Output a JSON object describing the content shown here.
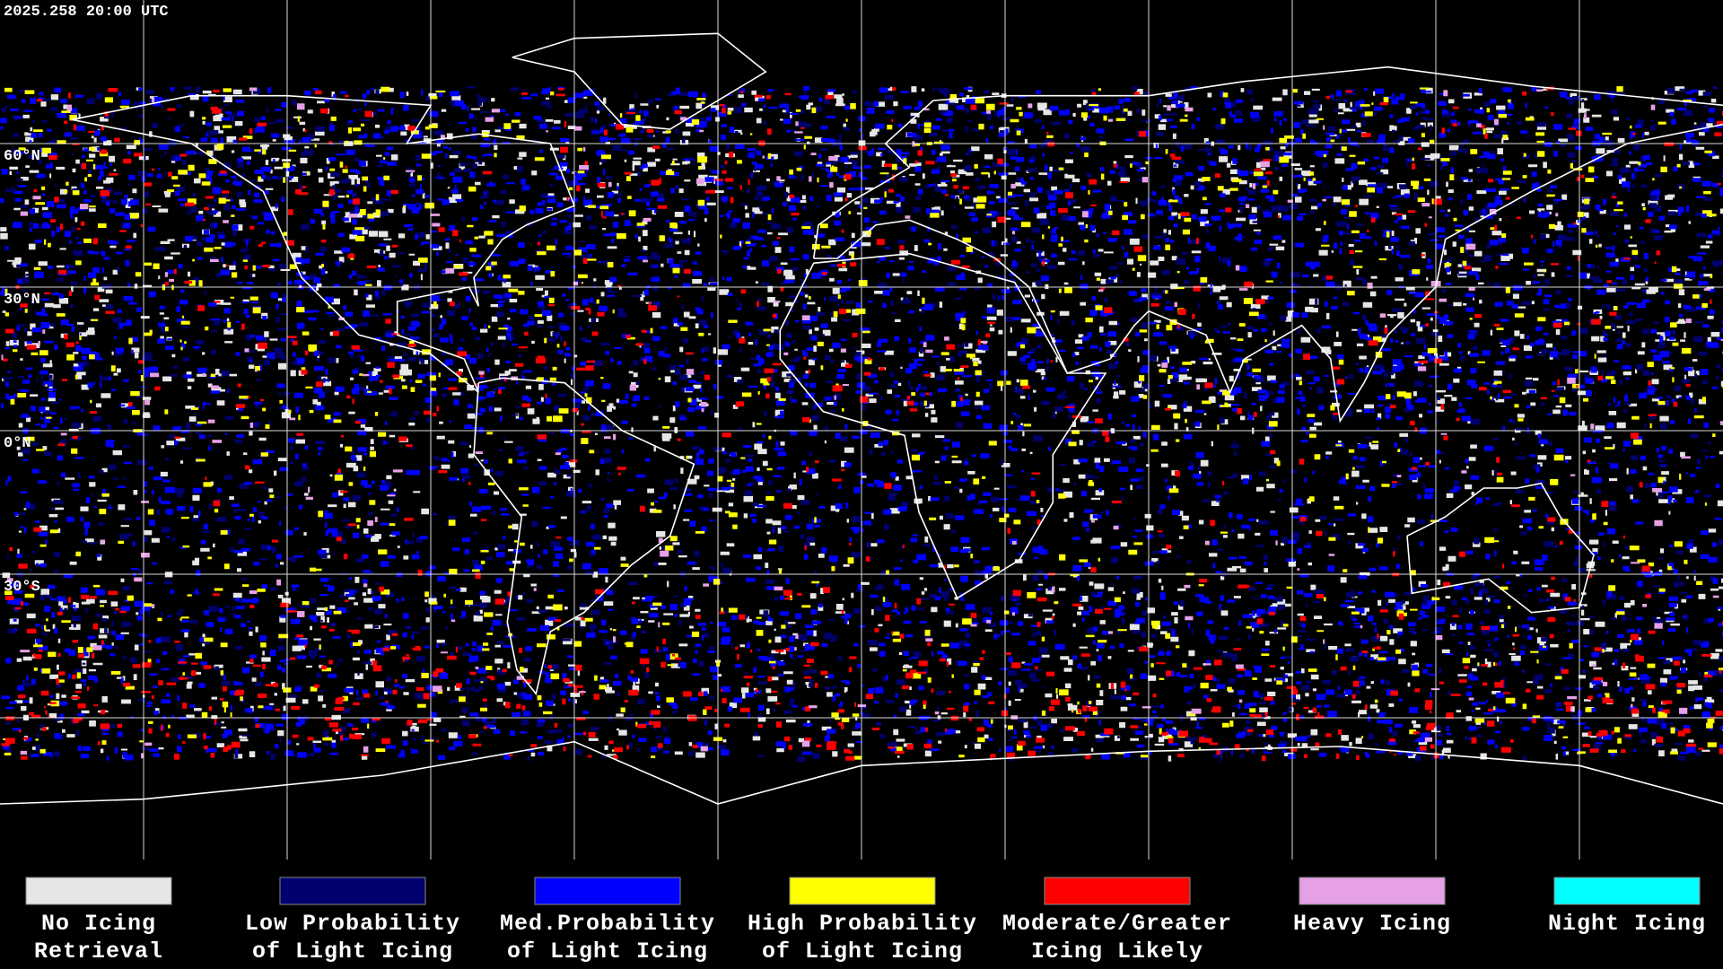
{
  "timestamp": "2025.258 20:00 UTC",
  "latitude_labels": [
    "60°N",
    "30°N",
    "0°N",
    "30°S"
  ],
  "legend": [
    {
      "color": "#e6e6e6",
      "label_lines": [
        "No Icing",
        "Retrieval"
      ]
    },
    {
      "color": "#00006e",
      "label_lines": [
        "Low Probability",
        "of Light Icing"
      ]
    },
    {
      "color": "#0000ff",
      "label_lines": [
        "Med.Probability",
        "of Light Icing"
      ]
    },
    {
      "color": "#ffff00",
      "label_lines": [
        "High Probability",
        "of Light Icing"
      ]
    },
    {
      "color": "#ff0000",
      "label_lines": [
        "Moderate/Greater",
        "Icing Likely"
      ]
    },
    {
      "color": "#e6a0e6",
      "label_lines": [
        "Heavy Icing"
      ]
    },
    {
      "color": "#00ffff",
      "label_lines": [
        "Night Icing"
      ]
    }
  ]
}
